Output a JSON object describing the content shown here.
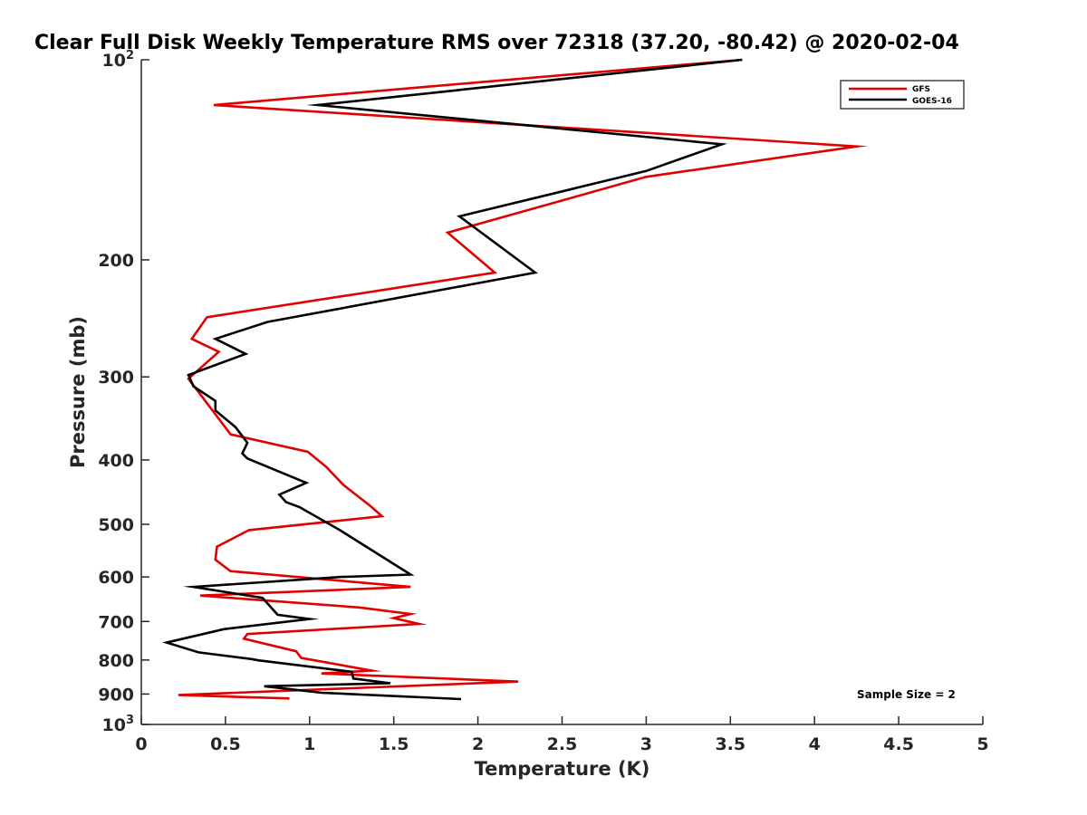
{
  "chart_data": {
    "type": "line",
    "title": "Clear Full Disk Weekly Temperature RMS over 72318 (37.20, -80.42) @ 2020-02-04",
    "xlabel": "Temperature (K)",
    "ylabel": "Pressure (mb)",
    "xlim": [
      0,
      5
    ],
    "ylim": [
      100,
      1000
    ],
    "yscale": "log",
    "y_reversed": true,
    "x_ticks": [
      "0",
      "0.5",
      "1",
      "1.5",
      "2",
      "2.5",
      "3",
      "3.5",
      "4",
      "4.5",
      "5"
    ],
    "y_ticks": [
      {
        "value": 100,
        "label": "10",
        "sup": "2"
      },
      {
        "value": 200,
        "label": "200",
        "sup": ""
      },
      {
        "value": 300,
        "label": "300",
        "sup": ""
      },
      {
        "value": 400,
        "label": "400",
        "sup": ""
      },
      {
        "value": 500,
        "label": "500",
        "sup": ""
      },
      {
        "value": 600,
        "label": "600",
        "sup": ""
      },
      {
        "value": 700,
        "label": "700",
        "sup": ""
      },
      {
        "value": 800,
        "label": "800",
        "sup": ""
      },
      {
        "value": 900,
        "label": "900",
        "sup": ""
      },
      {
        "value": 1000,
        "label": "10",
        "sup": "3"
      }
    ],
    "legend_position": "top-right",
    "annotation": "Sample Size = 2",
    "series": [
      {
        "name": "GFS",
        "color": "#e00000",
        "x": [
          3.57,
          0.43,
          4.25,
          3.0,
          1.82,
          2.1,
          0.39,
          0.3,
          0.46,
          0.28,
          0.36,
          0.53,
          0.99,
          1.1,
          1.2,
          1.36,
          1.43,
          0.64,
          0.45,
          0.44,
          0.53,
          1.6,
          0.35,
          1.3,
          1.6,
          1.5,
          1.65,
          0.63,
          0.61,
          0.92,
          0.95,
          1.37,
          1.07,
          2.24,
          0.22,
          0.88
        ],
        "y": [
          100,
          117,
          135,
          150,
          182,
          209,
          244,
          263,
          275,
          302,
          321,
          366,
          389,
          410,
          436,
          469,
          486,
          510,
          540,
          565,
          588,
          621,
          640,
          667,
          682,
          692,
          706,
          731,
          743,
          776,
          794,
          830,
          838,
          862,
          903,
          914
        ]
      },
      {
        "name": "GOES-16",
        "color": "#000000",
        "x": [
          3.57,
          1.05,
          3.45,
          3.0,
          1.89,
          2.34,
          0.75,
          0.44,
          0.62,
          0.28,
          0.31,
          0.44,
          0.44,
          0.56,
          0.63,
          0.6,
          0.63,
          0.98,
          0.82,
          0.86,
          0.94,
          1.18,
          1.6,
          1.18,
          0.31,
          0.72,
          0.81,
          1.0,
          0.49,
          0.15,
          0.34,
          0.65,
          0.7,
          1.25,
          1.26,
          1.48,
          0.73,
          1.07,
          1.9
        ],
        "y": [
          100,
          117,
          134,
          147,
          172,
          209,
          248,
          263,
          277,
          298,
          310,
          326,
          337,
          357,
          377,
          391,
          398,
          433,
          451,
          463,
          471,
          510,
          595,
          600,
          621,
          645,
          684,
          694,
          719,
          753,
          779,
          797,
          801,
          833,
          853,
          867,
          876,
          896,
          916
        ]
      }
    ]
  }
}
